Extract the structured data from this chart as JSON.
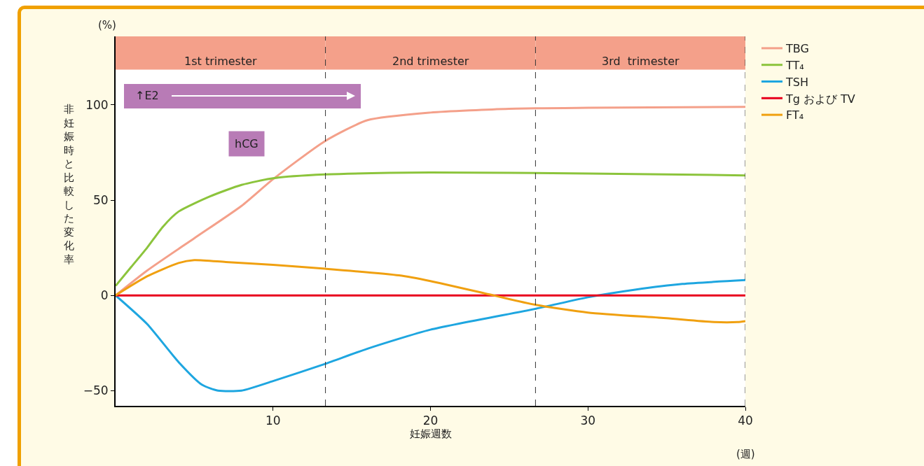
{
  "chart_data": {
    "type": "line",
    "xlabel": "妊娠週数",
    "ylabel": "非妊娠時と比較した変化率",
    "xlim": [
      0,
      40
    ],
    "ylim": [
      -58,
      136
    ],
    "xticks": [
      10,
      20,
      30,
      40
    ],
    "yticks": [
      {
        "value": -50,
        "label": "−50"
      },
      0,
      50,
      100
    ],
    "grid": false,
    "legend": "right",
    "marker": "none",
    "line_style": "solid",
    "series": [
      {
        "name": "TBG",
        "color": "#f4a08a",
        "x": [
          0,
          2,
          5,
          8,
          10,
          13.3,
          16,
          20,
          25,
          30,
          40
        ],
        "values": [
          0,
          13,
          30,
          47,
          61,
          81,
          92,
          96,
          98,
          98.5,
          99
        ]
      },
      {
        "name": "TT₄",
        "color": "#8cc43c",
        "x": [
          0,
          1,
          2,
          3,
          4,
          6,
          8,
          10,
          13.3,
          20,
          30,
          40
        ],
        "values": [
          5,
          15,
          25,
          36,
          44,
          52,
          58,
          61.5,
          63.5,
          64.5,
          64,
          63
        ]
      },
      {
        "name": "TSH",
        "color": "#1ea6e0",
        "x": [
          0,
          2,
          4,
          5.5,
          6.5,
          8,
          10,
          13.3,
          16,
          20,
          26.7,
          30,
          33,
          36,
          40
        ],
        "values": [
          0,
          -15,
          -35,
          -47,
          -50,
          -50,
          -45,
          -36,
          -28,
          -18,
          -7,
          -1,
          3,
          6,
          8
        ]
      },
      {
        "name": "Tg および TV",
        "color": "#e8001c",
        "x": [
          0,
          40
        ],
        "values": [
          0,
          0
        ]
      },
      {
        "name": "FT₄",
        "color": "#f0a010",
        "x": [
          0,
          2,
          4,
          5,
          7,
          10,
          13.3,
          18,
          20,
          24,
          26.7,
          30,
          35,
          38,
          39.5,
          40
        ],
        "values": [
          0,
          10,
          17,
          18.5,
          17.5,
          16,
          14,
          10.5,
          7.5,
          0,
          -5,
          -9,
          -12,
          -14,
          -14,
          -13.5
        ]
      }
    ],
    "bands": [
      {
        "axis": "x",
        "from": 0,
        "to": 13.33,
        "label": "1st trimester",
        "color": "#f4a08a"
      },
      {
        "axis": "x",
        "from": 13.33,
        "to": 26.67,
        "label": "2nd trimester",
        "color": "#f4a08a"
      },
      {
        "axis": "x",
        "from": 26.67,
        "to": 40,
        "label": "3rd  trimester",
        "color": "#f4a08a"
      }
    ],
    "ref_lines": [
      {
        "axis": "x",
        "value": 13.33,
        "line_style": "dashed",
        "color": "#333333"
      },
      {
        "axis": "x",
        "value": 26.67,
        "line_style": "dashed",
        "color": "#333333"
      },
      {
        "axis": "x",
        "value": 40,
        "line_style": "dashed",
        "color": "#333333"
      }
    ],
    "annotations": [
      "↑E2",
      "hCG",
      "(%)",
      "(週)"
    ]
  }
}
